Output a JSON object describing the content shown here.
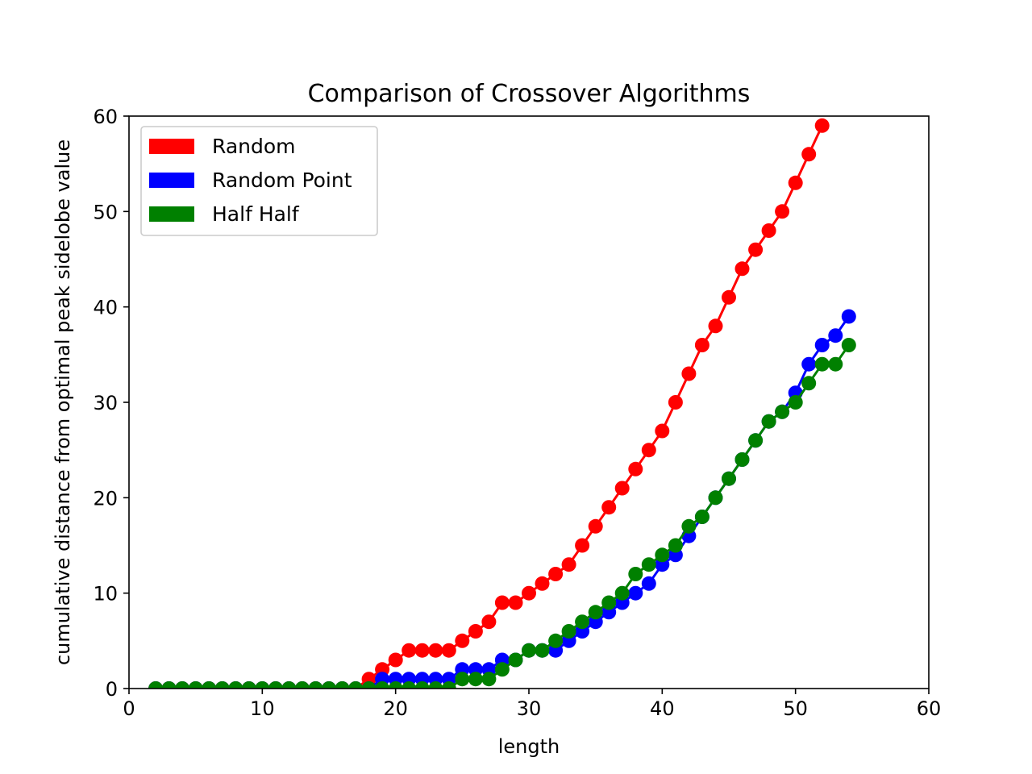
{
  "chart_data": {
    "type": "line",
    "title": "Comparison of Crossover Algorithms",
    "xlabel": "length",
    "ylabel": "cumulative distance from optimal peak sidelobe value",
    "xlim": [
      0,
      60
    ],
    "ylim": [
      0,
      60
    ],
    "xticks": [
      0,
      10,
      20,
      30,
      40,
      50,
      60
    ],
    "yticks": [
      0,
      10,
      20,
      30,
      40,
      50,
      60
    ],
    "grid": false,
    "legend_position": "top-left",
    "markers": true,
    "series": [
      {
        "name": "Random",
        "color": "#ff0000",
        "x": [
          2,
          3,
          4,
          5,
          6,
          7,
          8,
          9,
          10,
          11,
          12,
          13,
          14,
          15,
          16,
          17,
          18,
          19,
          20,
          21,
          22,
          23,
          24,
          25,
          26,
          27,
          28,
          29,
          30,
          31,
          32,
          33,
          34,
          35,
          36,
          37,
          38,
          39,
          40,
          41,
          42,
          43,
          44,
          45,
          46,
          47,
          48,
          49,
          50,
          51,
          52
        ],
        "y": [
          0,
          0,
          0,
          0,
          0,
          0,
          0,
          0,
          0,
          0,
          0,
          0,
          0,
          0,
          0,
          0,
          1,
          2,
          3,
          4,
          4,
          4,
          4,
          5,
          6,
          7,
          9,
          9,
          10,
          11,
          12,
          13,
          15,
          17,
          19,
          21,
          23,
          25,
          27,
          30,
          33,
          36,
          38,
          41,
          44,
          46,
          48,
          50,
          53,
          56,
          59
        ]
      },
      {
        "name": "Random Point",
        "color": "#0000ff",
        "x": [
          2,
          3,
          4,
          5,
          6,
          7,
          8,
          9,
          10,
          11,
          12,
          13,
          14,
          15,
          16,
          17,
          18,
          19,
          20,
          21,
          22,
          23,
          24,
          25,
          26,
          27,
          28,
          29,
          30,
          31,
          32,
          33,
          34,
          35,
          36,
          37,
          38,
          39,
          40,
          41,
          42,
          43,
          44,
          45,
          46,
          47,
          48,
          49,
          50,
          51,
          52,
          53,
          54
        ],
        "y": [
          0,
          0,
          0,
          0,
          0,
          0,
          0,
          0,
          0,
          0,
          0,
          0,
          0,
          0,
          0,
          0,
          0,
          1,
          1,
          1,
          1,
          1,
          1,
          2,
          2,
          2,
          3,
          3,
          4,
          4,
          4,
          5,
          6,
          7,
          8,
          9,
          10,
          11,
          13,
          14,
          16,
          18,
          20,
          22,
          24,
          26,
          28,
          29,
          31,
          34,
          36,
          37,
          39
        ]
      },
      {
        "name": "Half Half",
        "color": "#008000",
        "x": [
          2,
          3,
          4,
          5,
          6,
          7,
          8,
          9,
          10,
          11,
          12,
          13,
          14,
          15,
          16,
          17,
          18,
          19,
          20,
          21,
          22,
          23,
          24,
          25,
          26,
          27,
          28,
          29,
          30,
          31,
          32,
          33,
          34,
          35,
          36,
          37,
          38,
          39,
          40,
          41,
          42,
          43,
          44,
          45,
          46,
          47,
          48,
          49,
          50,
          51,
          52,
          53,
          54
        ],
        "y": [
          0,
          0,
          0,
          0,
          0,
          0,
          0,
          0,
          0,
          0,
          0,
          0,
          0,
          0,
          0,
          0,
          0,
          0,
          0,
          0,
          0,
          0,
          0,
          1,
          1,
          1,
          2,
          3,
          4,
          4,
          5,
          6,
          7,
          8,
          9,
          10,
          12,
          13,
          14,
          15,
          17,
          18,
          20,
          22,
          24,
          26,
          28,
          29,
          30,
          32,
          34,
          34,
          36
        ]
      }
    ]
  }
}
